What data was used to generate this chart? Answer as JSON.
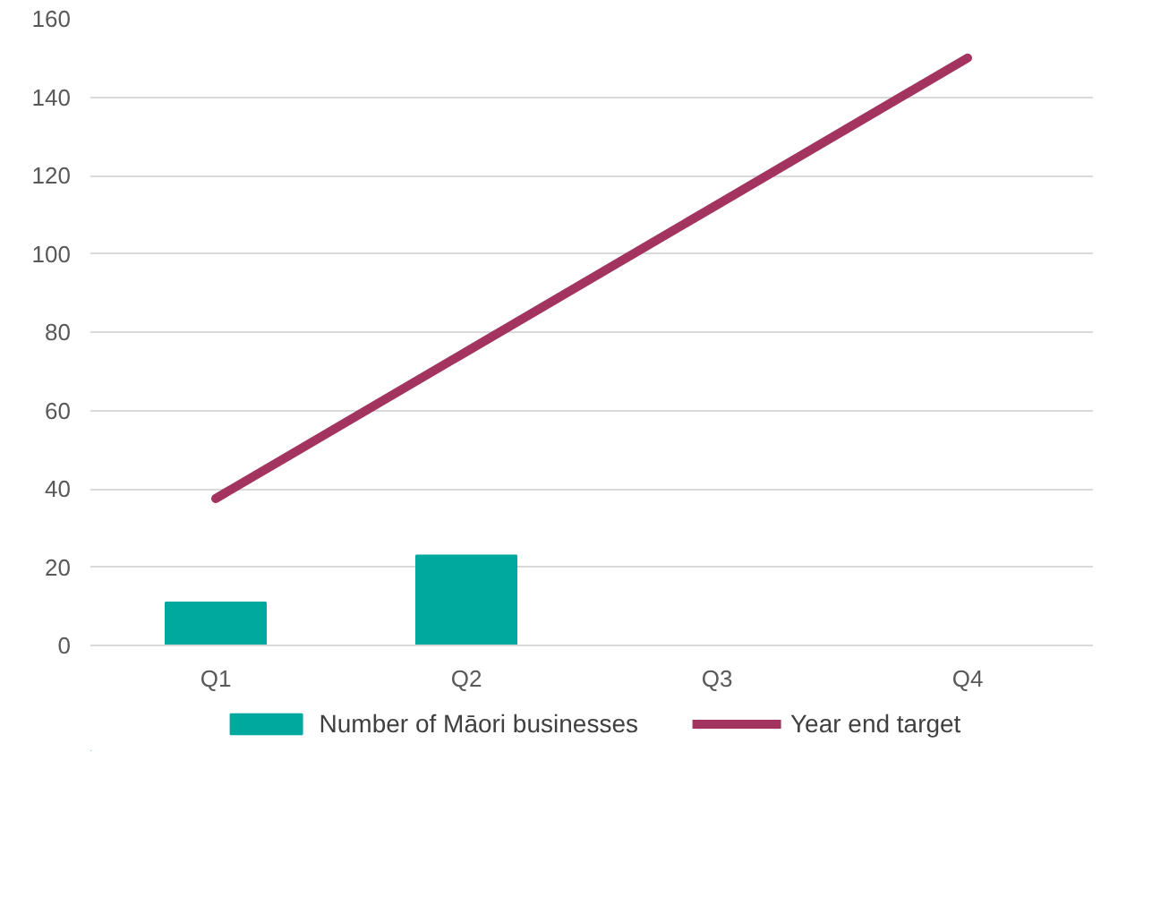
{
  "chart_data": {
    "type": "bar",
    "categories": [
      "Q1",
      "Q2",
      "Q3",
      "Q4"
    ],
    "series": [
      {
        "name": "Number of Māori businesses",
        "color": "#00a99d",
        "values": [
          11,
          23,
          null,
          null
        ]
      },
      {
        "name": "Year end target",
        "type": "line",
        "color": "#a3345f",
        "values": [
          37.5,
          75,
          112.5,
          150
        ]
      }
    ],
    "ylim": [
      0,
      160
    ],
    "yticks": [
      0,
      20,
      40,
      60,
      80,
      100,
      120,
      140,
      160
    ],
    "grid": "y",
    "legend": "bottom",
    "marker": "none",
    "line_style": "solid"
  }
}
